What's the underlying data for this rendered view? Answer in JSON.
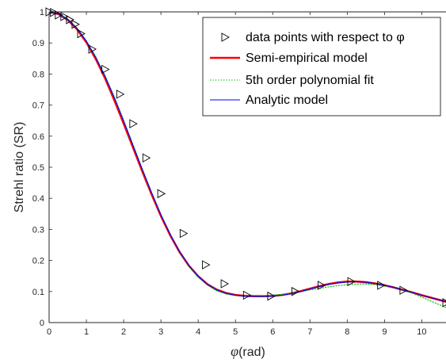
{
  "chart_data": {
    "type": "line",
    "xlabel": {
      "symbol": "φ",
      "unit": "(rad)"
    },
    "ylabel": "Strehl ratio (SR)",
    "xlim": [
      0,
      10.65
    ],
    "ylim": [
      0,
      1
    ],
    "xticks": [
      "0",
      "1",
      "2",
      "3",
      "4",
      "5",
      "6",
      "7",
      "8",
      "9",
      "10"
    ],
    "yticks": [
      "0",
      "0.1",
      "0.2",
      "0.3",
      "0.4",
      "0.5",
      "0.6",
      "0.7",
      "0.8",
      "0.9",
      "1"
    ],
    "grid": false,
    "legend_position": "top-right",
    "series": [
      {
        "name": "data points with respect to φ",
        "kind": "markers",
        "marker": "triangle-right",
        "color": "#000000",
        "x": [
          0.0,
          0.12,
          0.25,
          0.4,
          0.55,
          0.7,
          0.85,
          1.15,
          1.5,
          1.9,
          2.25,
          2.6,
          3.0,
          3.6,
          4.2,
          4.7,
          5.3,
          5.95,
          6.6,
          7.3,
          8.1,
          8.9,
          9.5,
          10.65
        ],
        "y": [
          1.0,
          0.998,
          0.99,
          0.985,
          0.975,
          0.96,
          0.93,
          0.88,
          0.815,
          0.735,
          0.64,
          0.53,
          0.415,
          0.287,
          0.186,
          0.125,
          0.088,
          0.085,
          0.1,
          0.12,
          0.132,
          0.12,
          0.104,
          0.064
        ]
      },
      {
        "name": "Semi-empirical model",
        "kind": "line",
        "color": "#ff0000",
        "width": 2.6,
        "dash": "solid",
        "x": [
          0,
          0.25,
          0.5,
          0.75,
          1.0,
          1.25,
          1.5,
          1.75,
          2.0,
          2.25,
          2.5,
          2.75,
          3.0,
          3.25,
          3.5,
          3.75,
          4.0,
          4.25,
          4.5,
          4.75,
          5.0,
          5.25,
          5.5,
          5.75,
          6.0,
          6.25,
          6.5,
          6.75,
          7.0,
          7.25,
          7.5,
          7.75,
          8.0,
          8.25,
          8.5,
          8.75,
          9.0,
          9.25,
          9.5,
          9.75,
          10.0,
          10.25,
          10.5,
          10.65
        ],
        "y": [
          1.0,
          0.993,
          0.974,
          0.944,
          0.902,
          0.849,
          0.787,
          0.716,
          0.641,
          0.564,
          0.487,
          0.413,
          0.343,
          0.281,
          0.227,
          0.183,
          0.149,
          0.123,
          0.106,
          0.095,
          0.089,
          0.086,
          0.085,
          0.085,
          0.086,
          0.089,
          0.094,
          0.101,
          0.109,
          0.117,
          0.124,
          0.129,
          0.132,
          0.132,
          0.13,
          0.126,
          0.12,
          0.113,
          0.105,
          0.097,
          0.088,
          0.08,
          0.072,
          0.067
        ]
      },
      {
        "name": "5th order polynomial fit",
        "kind": "line",
        "color": "#00cc00",
        "width": 1.2,
        "dash": "dotted",
        "x": [
          0,
          0.25,
          0.5,
          0.75,
          1.0,
          1.25,
          1.5,
          1.75,
          2.0,
          2.25,
          2.5,
          2.75,
          3.0,
          3.25,
          3.5,
          3.75,
          4.0,
          4.25,
          4.5,
          4.75,
          5.0,
          5.25,
          5.5,
          5.75,
          6.0,
          6.25,
          6.5,
          6.75,
          7.0,
          7.25,
          7.5,
          7.75,
          8.0,
          8.25,
          8.5,
          8.75,
          9.0,
          9.25,
          9.5,
          9.75,
          10.0,
          10.25,
          10.5,
          10.65
        ],
        "y": [
          1.0,
          0.995,
          0.978,
          0.948,
          0.907,
          0.856,
          0.795,
          0.726,
          0.651,
          0.573,
          0.495,
          0.419,
          0.348,
          0.284,
          0.228,
          0.182,
          0.146,
          0.12,
          0.102,
          0.092,
          0.087,
          0.085,
          0.085,
          0.086,
          0.088,
          0.091,
          0.095,
          0.1,
          0.105,
          0.11,
          0.115,
          0.119,
          0.122,
          0.124,
          0.124,
          0.122,
          0.118,
          0.112,
          0.104,
          0.094,
          0.082,
          0.069,
          0.056,
          0.048
        ]
      },
      {
        "name": "Analytic model",
        "kind": "line",
        "color": "#0000ff",
        "width": 1.1,
        "dash": "solid",
        "x": [
          0,
          0.25,
          0.5,
          0.75,
          1.0,
          1.25,
          1.5,
          1.75,
          2.0,
          2.25,
          2.5,
          2.75,
          3.0,
          3.25,
          3.5,
          3.75,
          4.0,
          4.25,
          4.5,
          4.75,
          5.0,
          5.25,
          5.5,
          5.75,
          6.0,
          6.25,
          6.5,
          6.75,
          7.0,
          7.25,
          7.5,
          7.75,
          8.0,
          8.25,
          8.5,
          8.75,
          9.0,
          9.25,
          9.5,
          9.75,
          10.0,
          10.25,
          10.5,
          10.65
        ],
        "y": [
          1.0,
          0.994,
          0.976,
          0.947,
          0.906,
          0.854,
          0.793,
          0.724,
          0.649,
          0.571,
          0.493,
          0.418,
          0.347,
          0.284,
          0.229,
          0.184,
          0.149,
          0.123,
          0.105,
          0.094,
          0.088,
          0.085,
          0.084,
          0.084,
          0.085,
          0.088,
          0.093,
          0.1,
          0.108,
          0.116,
          0.123,
          0.128,
          0.131,
          0.132,
          0.13,
          0.126,
          0.12,
          0.113,
          0.105,
          0.097,
          0.088,
          0.08,
          0.072,
          0.067
        ]
      }
    ]
  }
}
